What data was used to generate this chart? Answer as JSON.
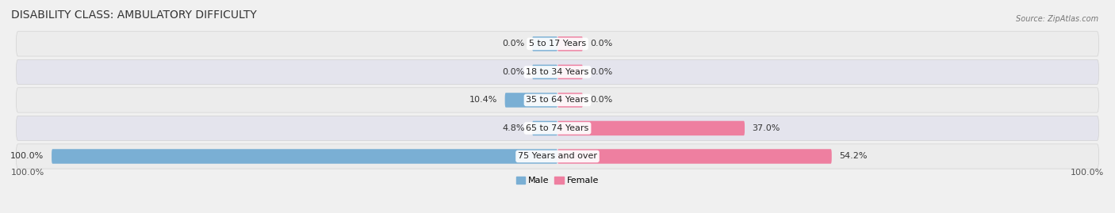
{
  "title": "DISABILITY CLASS: AMBULATORY DIFFICULTY",
  "source": "Source: ZipAtlas.com",
  "categories": [
    "5 to 17 Years",
    "18 to 34 Years",
    "35 to 64 Years",
    "65 to 74 Years",
    "75 Years and over"
  ],
  "male_values": [
    0.0,
    0.0,
    10.4,
    4.8,
    100.0
  ],
  "female_values": [
    0.0,
    0.0,
    0.0,
    37.0,
    54.2
  ],
  "male_color": "#7aafd4",
  "female_color": "#ee7fa0",
  "row_bg_colors": [
    "#ececec",
    "#e4e4ed"
  ],
  "max_value": 100.0,
  "min_bar_display": 5.0,
  "axis_label_left": "100.0%",
  "axis_label_right": "100.0%",
  "title_fontsize": 10,
  "label_fontsize": 8,
  "tick_fontsize": 8,
  "bar_height": 0.52,
  "figsize": [
    14.06,
    2.69
  ],
  "dpi": 100
}
